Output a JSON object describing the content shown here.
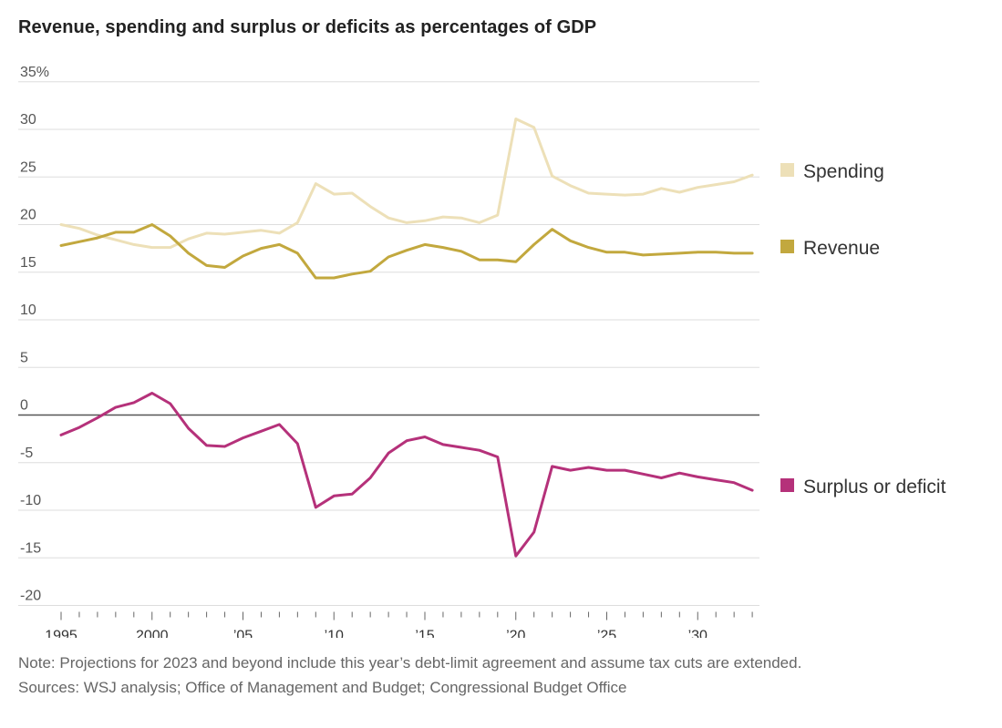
{
  "title": "Revenue, spending and surplus or deficits as percentages of GDP",
  "note": "Note: Projections for 2023 and beyond include this year’s debt-limit agreement and assume tax cuts are extended.",
  "sources": "Sources: WSJ analysis; Office of Management and Budget; Congressional Budget Office",
  "chart_data": {
    "type": "line",
    "title": "Revenue, spending and surplus or deficits as percentages of GDP",
    "xlabel": "",
    "ylabel": "",
    "ylim": [
      -20,
      35
    ],
    "xlim": [
      1995,
      2033
    ],
    "grid": true,
    "legend": "right",
    "y_ticks": [
      {
        "value": 35,
        "label": "35%"
      },
      {
        "value": 30,
        "label": "30"
      },
      {
        "value": 25,
        "label": "25"
      },
      {
        "value": 20,
        "label": "20"
      },
      {
        "value": 15,
        "label": "15"
      },
      {
        "value": 10,
        "label": "10"
      },
      {
        "value": 5,
        "label": "5"
      },
      {
        "value": 0,
        "label": "0"
      },
      {
        "value": -5,
        "label": "-5"
      },
      {
        "value": -10,
        "label": "-10"
      },
      {
        "value": -15,
        "label": "-15"
      },
      {
        "value": -20,
        "label": "-20"
      }
    ],
    "x_ticks": [
      {
        "value": 1995,
        "label": "1995"
      },
      {
        "value": 2000,
        "label": "2000"
      },
      {
        "value": 2005,
        "label": "’05"
      },
      {
        "value": 2010,
        "label": "’10"
      },
      {
        "value": 2015,
        "label": "’15"
      },
      {
        "value": 2020,
        "label": "’20"
      },
      {
        "value": 2025,
        "label": "’25"
      },
      {
        "value": 2030,
        "label": "’30"
      }
    ],
    "x": [
      1995,
      1996,
      1997,
      1998,
      1999,
      2000,
      2001,
      2002,
      2003,
      2004,
      2005,
      2006,
      2007,
      2008,
      2009,
      2010,
      2011,
      2012,
      2013,
      2014,
      2015,
      2016,
      2017,
      2018,
      2019,
      2020,
      2021,
      2022,
      2023,
      2024,
      2025,
      2026,
      2027,
      2028,
      2029,
      2030,
      2031,
      2032,
      2033
    ],
    "series": [
      {
        "name": "Spending",
        "color": "#ede0b8",
        "values": [
          20.0,
          19.6,
          18.9,
          18.4,
          17.9,
          17.6,
          17.6,
          18.5,
          19.1,
          19.0,
          19.2,
          19.4,
          19.1,
          20.2,
          24.3,
          23.2,
          23.3,
          21.9,
          20.7,
          20.2,
          20.4,
          20.8,
          20.7,
          20.2,
          21.0,
          31.1,
          30.2,
          25.1,
          24.1,
          23.3,
          23.2,
          23.1,
          23.2,
          23.8,
          23.4,
          23.9,
          24.2,
          24.5,
          25.2
        ]
      },
      {
        "name": "Revenue",
        "color": "#c2a83e",
        "values": [
          17.8,
          18.2,
          18.6,
          19.2,
          19.2,
          20.0,
          18.8,
          17.0,
          15.7,
          15.5,
          16.7,
          17.5,
          17.9,
          17.0,
          14.4,
          14.4,
          14.8,
          15.1,
          16.6,
          17.3,
          17.9,
          17.6,
          17.2,
          16.3,
          16.3,
          16.1,
          17.9,
          19.5,
          18.3,
          17.6,
          17.1,
          17.1,
          16.8,
          16.9,
          17.0,
          17.1,
          17.1,
          17.0,
          17.0
        ]
      },
      {
        "name": "Surplus or deficit",
        "color": "#b5317a",
        "values": [
          -2.1,
          -1.3,
          -0.3,
          0.8,
          1.3,
          2.3,
          1.2,
          -1.4,
          -3.2,
          -3.3,
          -2.4,
          -1.7,
          -1.0,
          -3.0,
          -9.7,
          -8.5,
          -8.3,
          -6.6,
          -4.0,
          -2.7,
          -2.3,
          -3.1,
          -3.4,
          -3.7,
          -4.4,
          -14.8,
          -12.3,
          -5.4,
          -5.8,
          -5.5,
          -5.8,
          -5.8,
          -6.2,
          -6.6,
          -6.1,
          -6.5,
          -6.8,
          -7.1,
          -7.9
        ]
      }
    ]
  }
}
